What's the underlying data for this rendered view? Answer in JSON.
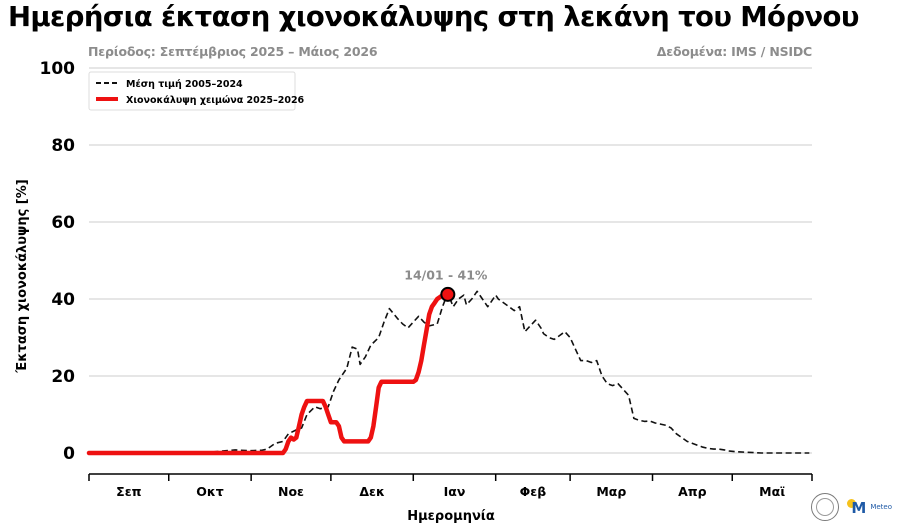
{
  "header": {
    "title": "Ημερήσια έκταση χιονοκάλυψης στη λεκάνη του Μόρνου",
    "subtitle": "Περίοδος: Σεπτέμβριος 2025 – Μάιος 2026",
    "source": "Δεδομένα: IMS / NSIDC"
  },
  "logos": {
    "meteo_name": "Meteo"
  },
  "colors": {
    "current": "#ee1111",
    "mean": "#111111",
    "grid": "#cccccc",
    "annotation": "#8c8c8c"
  },
  "chart_data": {
    "type": "line",
    "xlabel": "Ημερομηνία",
    "ylabel": "Έκταση χιονοκάλυψης [%]",
    "ylim": [
      0,
      100
    ],
    "yticks": [
      0,
      20,
      40,
      60,
      80,
      100
    ],
    "x_unit": "day from 1 Sep 2025",
    "xlim": [
      0,
      272
    ],
    "months": [
      "Σεπ",
      "Οκτ",
      "Νοε",
      "Δεκ",
      "Ιαν",
      "Φεβ",
      "Μαρ",
      "Απρ",
      "Μαϊ"
    ],
    "month_starts": [
      0,
      30,
      61,
      91,
      122,
      153,
      181,
      212,
      242
    ],
    "grid": "horizontal",
    "legend_position": "top-left",
    "annotation": {
      "text": "14/01 - 41%",
      "x": 135,
      "y": 41.2
    },
    "series": [
      {
        "name": "Μέση τιμή 2005–2024",
        "style": "dashed",
        "x": [
          0,
          40,
          45,
          50,
          55,
          60,
          65,
          67,
          70,
          73,
          75,
          78,
          80,
          82,
          85,
          87,
          90,
          92,
          94,
          97,
          99,
          101,
          102,
          104,
          106,
          109,
          111,
          113,
          116,
          118,
          120,
          122,
          124,
          126,
          128,
          131,
          133,
          135,
          137,
          139,
          141,
          142,
          144,
          146,
          148,
          150,
          151,
          153,
          154,
          156,
          158,
          160,
          162,
          164,
          166,
          168,
          170,
          171,
          173,
          175,
          177,
          179,
          181,
          183,
          185,
          187,
          189,
          191,
          193,
          195,
          197,
          199,
          201,
          203,
          205,
          207,
          209,
          211,
          213,
          215,
          217,
          219,
          221,
          223,
          225,
          227,
          229,
          231,
          233,
          235,
          237,
          239,
          241,
          244,
          247,
          250,
          253,
          256,
          258,
          261,
          264,
          267,
          269,
          271
        ],
        "y": [
          0,
          0,
          0.2,
          0.5,
          0.8,
          0.6,
          0.7,
          1,
          2.5,
          3,
          5,
          6,
          6.5,
          10,
          12,
          11.5,
          12,
          16,
          19,
          22,
          27.5,
          27,
          23,
          25,
          28,
          30,
          34,
          37.5,
          35,
          33.5,
          32.5,
          34,
          35.5,
          34,
          33,
          33.5,
          38,
          41.5,
          38,
          40,
          41,
          38.5,
          40,
          42,
          40,
          38,
          39,
          41,
          40,
          39,
          38,
          37,
          38,
          31.5,
          33,
          34.5,
          32.5,
          31,
          30,
          29.5,
          30.5,
          31.5,
          30,
          27,
          24,
          24,
          23.5,
          24,
          20,
          18,
          17.5,
          18,
          16.5,
          15,
          9,
          8.5,
          8.2,
          8.3,
          7.8,
          7.5,
          7.2,
          6.5,
          5,
          4,
          3,
          2.5,
          2,
          1.5,
          1.2,
          1,
          1,
          0.8,
          0.5,
          0.3,
          0.2,
          0.1,
          0,
          0,
          0,
          0,
          0,
          0,
          0,
          0
        ]
      },
      {
        "name": "Χιονοκάλυψη χειμώνα 2025–2026",
        "style": "solid",
        "x": [
          0,
          73,
          74,
          75,
          76,
          77,
          78,
          79,
          80,
          81,
          82,
          83,
          84,
          85,
          86,
          87,
          88,
          89,
          90,
          91,
          92,
          93,
          94,
          95,
          96,
          97,
          98,
          99,
          100,
          101,
          102,
          103,
          104,
          105,
          106,
          107,
          108,
          109,
          110,
          111,
          112,
          113,
          114,
          115,
          116,
          117,
          118,
          119,
          120,
          121,
          122,
          123,
          124,
          125,
          126,
          127,
          128,
          129,
          130,
          131,
          132,
          133,
          134,
          135
        ],
        "y": [
          0,
          0,
          1,
          3,
          4,
          3.5,
          4,
          7,
          10,
          12,
          13.5,
          13.5,
          13.5,
          13.5,
          13.5,
          13.5,
          13.5,
          12,
          10,
          8,
          8,
          8,
          7,
          4,
          3,
          3,
          3,
          3,
          3,
          3,
          3,
          3,
          3,
          3,
          4,
          7,
          12,
          17,
          18.5,
          18.5,
          18.5,
          18.5,
          18.5,
          18.5,
          18.5,
          18.5,
          18.5,
          18.5,
          18.5,
          18.5,
          18.5,
          19,
          21,
          24,
          28,
          32,
          36,
          38,
          39,
          40,
          40.5,
          41,
          41.2,
          41.2
        ]
      }
    ]
  }
}
